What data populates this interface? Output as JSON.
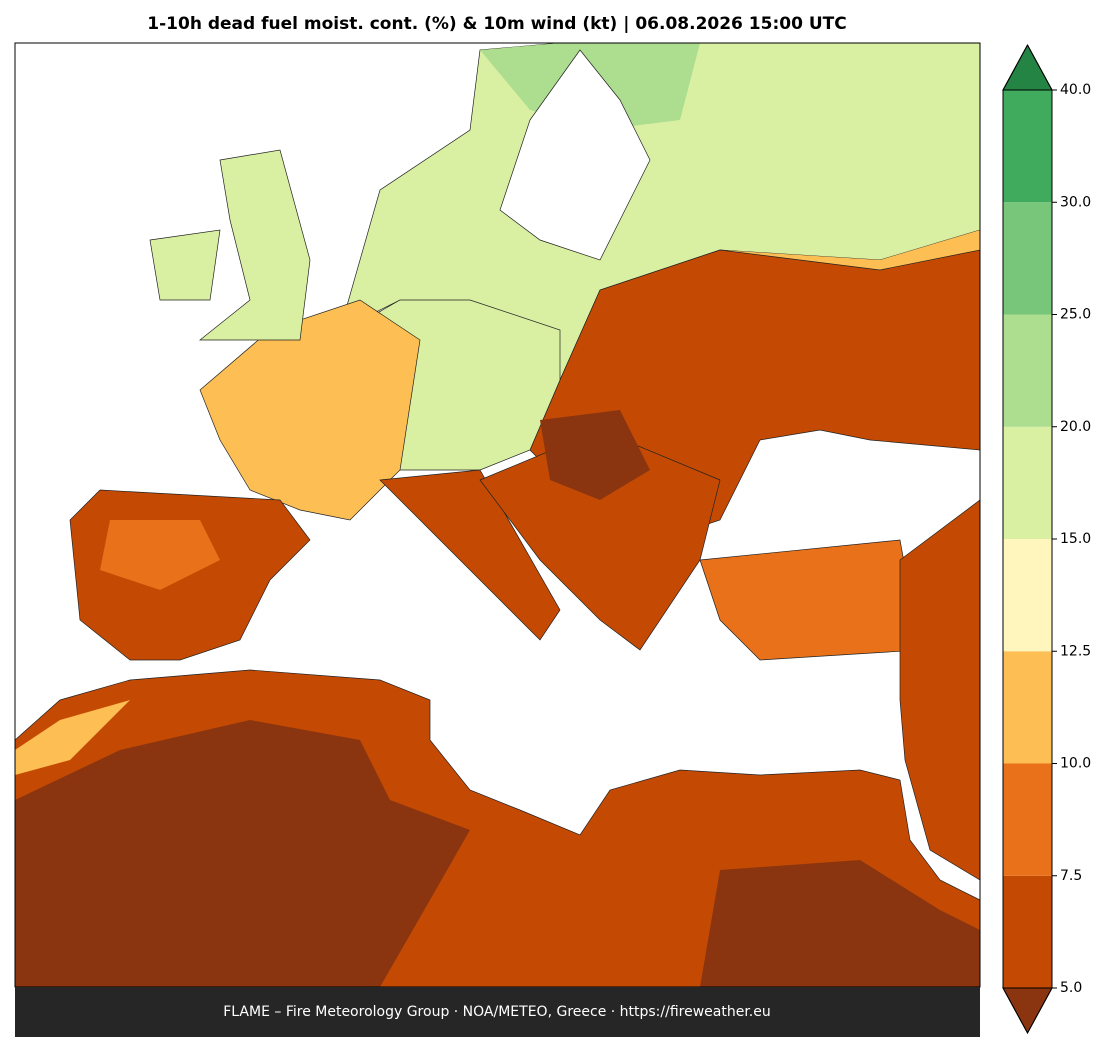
{
  "title": "1-10h dead fuel moist. cont. (%) & 10m wind (kt)  |  06.08.2026 15:00 UTC",
  "footer": "FLAME – Fire Meteorology Group · NOA/METEO, Greece · https://fireweather.eu",
  "colorbar": {
    "ticks": [
      {
        "value": 5,
        "label": "5.0"
      },
      {
        "value": 7.5,
        "label": "7.5"
      },
      {
        "value": 10,
        "label": "10.0"
      },
      {
        "value": 12.5,
        "label": "12.5"
      },
      {
        "value": 15,
        "label": "15.0"
      },
      {
        "value": 20,
        "label": "20.0"
      },
      {
        "value": 25,
        "label": "25.0"
      },
      {
        "value": 30,
        "label": "30.0"
      },
      {
        "value": 40,
        "label": "40.0"
      }
    ],
    "colors": [
      "#c44a03",
      "#e8711a",
      "#fdbe54",
      "#fff6bd",
      "#d9f0a3",
      "#addd8e",
      "#78c679",
      "#41ab5d"
    ],
    "under_color": "#8b3510",
    "over_color": "#238443"
  }
}
